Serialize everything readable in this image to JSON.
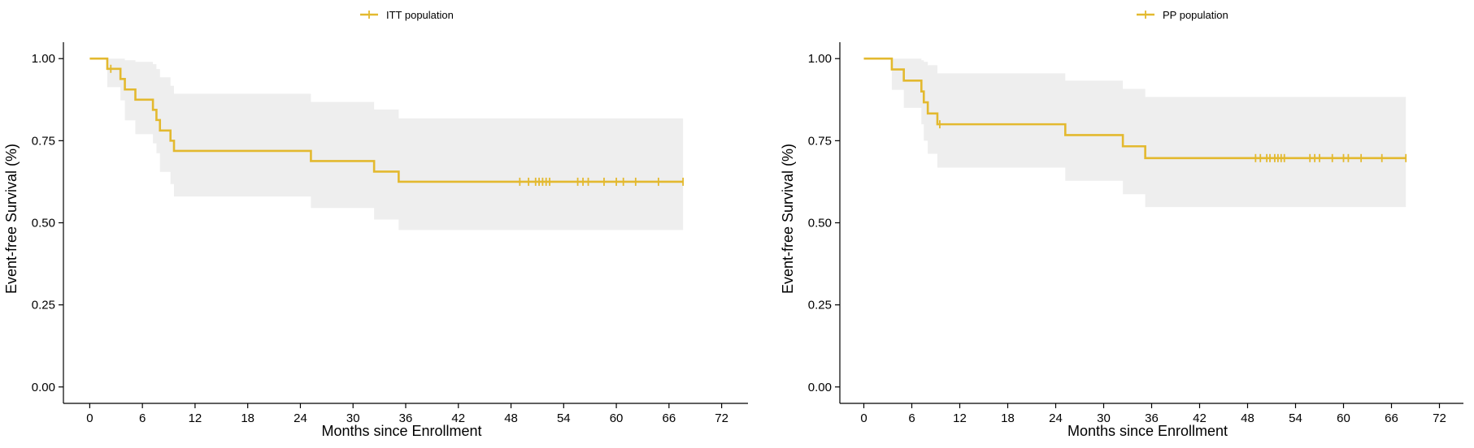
{
  "chart_data": [
    {
      "type": "line",
      "subtype": "kaplan-meier",
      "title": "",
      "xlabel": "Months since Enrollment",
      "ylabel": "Event-free Survival (%)",
      "xlim": [
        -3,
        75
      ],
      "ylim": [
        -0.05,
        1.05
      ],
      "x_ticks": [
        0,
        6,
        12,
        18,
        24,
        30,
        36,
        42,
        48,
        54,
        60,
        66,
        72
      ],
      "x_tick_labels": [
        "0",
        "6",
        "12",
        "18",
        "24",
        "30",
        "36",
        "42",
        "48",
        "54",
        "60",
        "66",
        "72"
      ],
      "y_ticks": [
        0,
        0.25,
        0.5,
        0.75,
        1
      ],
      "y_tick_labels": [
        "0.00",
        "0.25",
        "0.50",
        "0.75",
        "1.00"
      ],
      "grid": false,
      "legend_position": "top",
      "colors": {
        "line": "#e3b92f",
        "band": "#eeeeee",
        "axis": "#000000"
      },
      "series": [
        {
          "name": "ITT population",
          "steps": [
            [
              0,
              1.0
            ],
            [
              2.0,
              0.969
            ],
            [
              3.5,
              0.938
            ],
            [
              4.0,
              0.906
            ],
            [
              5.2,
              0.875
            ],
            [
              7.2,
              0.844
            ],
            [
              7.6,
              0.813
            ],
            [
              8.0,
              0.781
            ],
            [
              9.2,
              0.75
            ],
            [
              9.6,
              0.719
            ],
            [
              25.2,
              0.688
            ],
            [
              32.4,
              0.656
            ],
            [
              35.2,
              0.625
            ],
            [
              67.6,
              0.625
            ]
          ],
          "ci_steps": [
            [
              0,
              1.0,
              1.0
            ],
            [
              2.0,
              0.913,
              1.0
            ],
            [
              3.5,
              0.873,
              1.0
            ],
            [
              4.0,
              0.812,
              0.995
            ],
            [
              5.2,
              0.77,
              0.99
            ],
            [
              7.2,
              0.742,
              0.983
            ],
            [
              7.6,
              0.712,
              0.968
            ],
            [
              8.0,
              0.655,
              0.943
            ],
            [
              9.2,
              0.618,
              0.917
            ],
            [
              9.6,
              0.58,
              0.893
            ],
            [
              25.2,
              0.545,
              0.868
            ],
            [
              32.4,
              0.51,
              0.845
            ],
            [
              35.2,
              0.478,
              0.818
            ],
            [
              67.6,
              0.478,
              0.818
            ]
          ],
          "censored": [
            2.4,
            49.0,
            50.0,
            50.8,
            51.2,
            51.6,
            52.0,
            52.4,
            55.6,
            56.2,
            56.8,
            58.6,
            60.0,
            60.8,
            62.2,
            64.8,
            67.6
          ]
        },
        {
          "name": "PP population",
          "steps": [
            [
              0,
              1.0
            ],
            [
              3.5,
              0.967
            ],
            [
              5.0,
              0.933
            ],
            [
              7.2,
              0.9
            ],
            [
              7.5,
              0.867
            ],
            [
              8.0,
              0.833
            ],
            [
              9.2,
              0.8
            ],
            [
              25.2,
              0.767
            ],
            [
              32.4,
              0.733
            ],
            [
              35.2,
              0.697
            ],
            [
              67.8,
              0.697
            ]
          ],
          "ci_steps": [
            [
              0,
              1.0,
              1.0
            ],
            [
              3.5,
              0.905,
              1.0
            ],
            [
              5.0,
              0.85,
              1.0
            ],
            [
              7.2,
              0.8,
              0.995
            ],
            [
              7.5,
              0.75,
              0.99
            ],
            [
              8.0,
              0.71,
              0.98
            ],
            [
              9.2,
              0.668,
              0.955
            ],
            [
              25.2,
              0.628,
              0.933
            ],
            [
              32.4,
              0.587,
              0.908
            ],
            [
              35.2,
              0.548,
              0.883
            ],
            [
              67.8,
              0.548,
              0.883
            ]
          ],
          "censored": [
            9.5,
            49.0,
            49.6,
            50.4,
            50.8,
            51.4,
            51.8,
            52.2,
            52.6,
            55.8,
            56.4,
            57.0,
            58.6,
            60.0,
            60.6,
            62.2,
            64.8,
            67.8
          ]
        }
      ]
    }
  ]
}
